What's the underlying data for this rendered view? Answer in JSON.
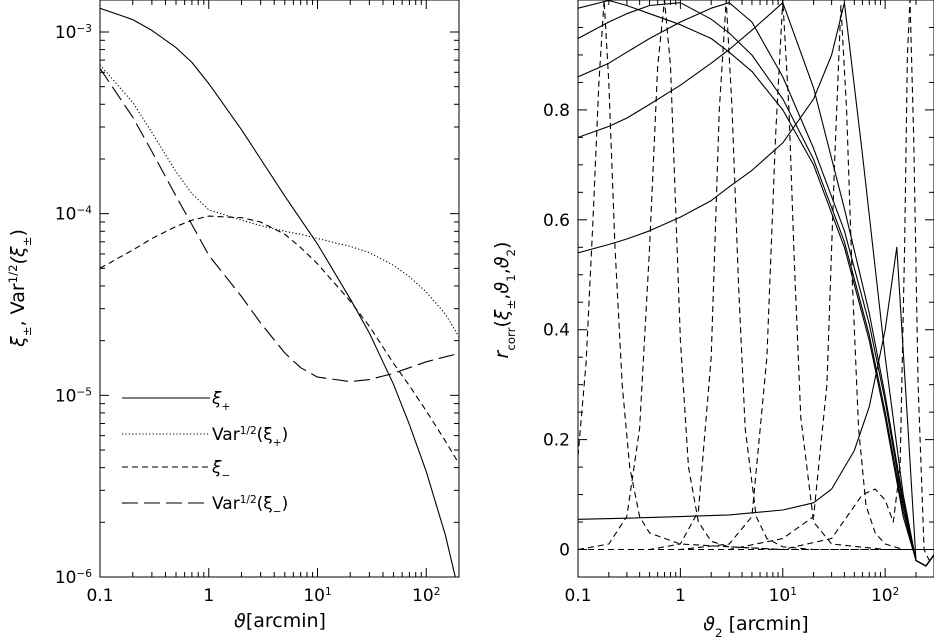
{
  "chart_data": [
    {
      "type": "line",
      "xscale": "log",
      "yscale": "log",
      "xlim": [
        0.1,
        200
      ],
      "ylim": [
        1e-06,
        0.0015
      ],
      "xlabel": "ϑ[arcmin]",
      "ylabel": "ξ±,  Var^1/2(ξ±)",
      "xticks": [
        {
          "value": 0.1,
          "label": "0.1",
          "sup": ""
        },
        {
          "value": 1,
          "label": "1",
          "sup": ""
        },
        {
          "value": 10,
          "label": "10",
          "sup": "1"
        },
        {
          "value": 100,
          "label": "10",
          "sup": "2"
        }
      ],
      "yticks": [
        {
          "value": 1e-06,
          "label": "10",
          "sup": "−6"
        },
        {
          "value": 1e-05,
          "label": "10",
          "sup": "−5"
        },
        {
          "value": 0.0001,
          "label": "10",
          "sup": "−4"
        },
        {
          "value": 0.001,
          "label": "10",
          "sup": "−3"
        }
      ],
      "legend_position": "lower-left",
      "series": [
        {
          "name": "ξ+",
          "style": "solid",
          "x": [
            0.1,
            0.2,
            0.3,
            0.5,
            0.7,
            1,
            2,
            3,
            5,
            7,
            10,
            20,
            30,
            50,
            70,
            100,
            150,
            200
          ],
          "y": [
            0.00135,
            0.00117,
            0.00102,
            0.00082,
            0.00068,
            0.00052,
            0.00029,
            0.0002,
            0.000125,
            9.3e-05,
            6.8e-05,
            3.4e-05,
            2.2e-05,
            1.15e-05,
            6.9e-06,
            3.8e-06,
            1.7e-06,
            8.2e-07
          ]
        },
        {
          "name": "Var1/2(ξ+)",
          "style": "dotted",
          "x": [
            0.1,
            0.2,
            0.3,
            0.5,
            0.7,
            1,
            2,
            3,
            5,
            7,
            10,
            20,
            30,
            50,
            70,
            100,
            150,
            200
          ],
          "y": [
            0.00066,
            0.00041,
            0.00028,
            0.00017,
            0.000129,
            0.000105,
            9.2e-05,
            8.6e-05,
            8e-05,
            7.7e-05,
            7.3e-05,
            6.6e-05,
            6.1e-05,
            5.2e-05,
            4.5e-05,
            3.7e-05,
            2.8e-05,
            2.1e-05
          ]
        },
        {
          "name": "ξ−",
          "style": "dashed",
          "x": [
            0.1,
            0.2,
            0.3,
            0.5,
            0.7,
            1,
            2,
            3,
            5,
            7,
            10,
            20,
            30,
            50,
            70,
            100,
            150,
            200
          ],
          "y": [
            5e-05,
            6.3e-05,
            7.3e-05,
            8.5e-05,
            9.2e-05,
            9.7e-05,
            9.5e-05,
            9e-05,
            7.7e-05,
            6.5e-05,
            5.3e-05,
            3.3e-05,
            2.4e-05,
            1.5e-05,
            1.13e-05,
            8.2e-06,
            5.6e-06,
            4.2e-06
          ]
        },
        {
          "name": "Var1/2(ξ−)",
          "style": "longdash",
          "x": [
            0.1,
            0.2,
            0.3,
            0.5,
            0.7,
            1,
            2,
            3,
            5,
            7,
            10,
            20,
            30,
            50,
            70,
            100,
            150,
            200
          ],
          "y": [
            0.00063,
            0.00034,
            0.00022,
            0.000125,
            8.7e-05,
            5.9e-05,
            3.5e-05,
            2.5e-05,
            1.71e-05,
            1.42e-05,
            1.26e-05,
            1.19e-05,
            1.22e-05,
            1.32e-05,
            1.42e-05,
            1.53e-05,
            1.63e-05,
            1.7e-05
          ]
        }
      ],
      "legend_labels": [
        {
          "label": "ξ",
          "sub": "+"
        },
        {
          "label": "Var",
          "sup": "1/2",
          "rest": "(ξ",
          "sub": "+",
          "end": ")"
        },
        {
          "label": "ξ",
          "sub": "−"
        },
        {
          "label": "Var",
          "sup": "1/2",
          "rest": "(ξ",
          "sub": "−",
          "end": ")"
        }
      ]
    },
    {
      "type": "line",
      "xscale": "log",
      "xlim": [
        0.1,
        300
      ],
      "ylim": [
        -0.05,
        1.0
      ],
      "xlabel": "ϑ₂ [arcmin]",
      "ylabel": "r_corr(ξ±,ϑ₁,ϑ₂)",
      "xticks": [
        {
          "value": 0.1,
          "label": "0.1",
          "sup": ""
        },
        {
          "value": 1,
          "label": "1",
          "sup": ""
        },
        {
          "value": 10,
          "label": "10",
          "sup": "1"
        },
        {
          "value": 100,
          "label": "10",
          "sup": "2"
        }
      ],
      "yticks": [
        {
          "value": 0,
          "label": "0"
        },
        {
          "value": 0.2,
          "label": "0.2"
        },
        {
          "value": 0.4,
          "label": "0.4"
        },
        {
          "value": 0.6,
          "label": "0.6"
        },
        {
          "value": 0.8,
          "label": "0.8"
        }
      ],
      "series": [
        {
          "style": "solid",
          "x": [
            0.1,
            0.2,
            0.3,
            0.5,
            1,
            2,
            3,
            5,
            10,
            20,
            40,
            70,
            100,
            150,
            200,
            250,
            300
          ],
          "y": [
            0.985,
            0.999,
            0.99,
            0.975,
            0.955,
            0.93,
            0.905,
            0.87,
            0.8,
            0.7,
            0.55,
            0.38,
            0.24,
            0.06,
            -0.02,
            -0.03,
            -0.01
          ]
        },
        {
          "style": "solid",
          "x": [
            0.1,
            0.2,
            0.3,
            0.5,
            1,
            2,
            3,
            5,
            10,
            20,
            40,
            70,
            100,
            150,
            200,
            250,
            300
          ],
          "y": [
            0.93,
            0.96,
            0.975,
            0.99,
            0.995,
            0.965,
            0.94,
            0.9,
            0.82,
            0.71,
            0.56,
            0.39,
            0.25,
            0.07,
            -0.02,
            -0.03,
            -0.01
          ]
        },
        {
          "style": "solid",
          "x": [
            0.1,
            0.2,
            0.3,
            0.5,
            1,
            2,
            3,
            5,
            10,
            20,
            40,
            70,
            100,
            150,
            200,
            250,
            300
          ],
          "y": [
            0.86,
            0.885,
            0.905,
            0.93,
            0.96,
            0.985,
            0.995,
            0.96,
            0.86,
            0.73,
            0.58,
            0.41,
            0.27,
            0.08,
            -0.02,
            -0.03,
            -0.01
          ]
        },
        {
          "style": "solid",
          "x": [
            0.1,
            0.2,
            0.3,
            0.5,
            1,
            2,
            3,
            5,
            10,
            20,
            40,
            70,
            100,
            150,
            200,
            250,
            300
          ],
          "y": [
            0.75,
            0.77,
            0.785,
            0.81,
            0.845,
            0.885,
            0.91,
            0.945,
            0.995,
            0.84,
            0.62,
            0.43,
            0.28,
            0.09,
            -0.02,
            -0.03,
            -0.01
          ]
        },
        {
          "style": "solid",
          "x": [
            0.1,
            0.2,
            0.3,
            0.5,
            1,
            2,
            3,
            5,
            10,
            20,
            30,
            40,
            60,
            100,
            150,
            200,
            250,
            300
          ],
          "y": [
            0.54,
            0.555,
            0.565,
            0.58,
            0.605,
            0.635,
            0.66,
            0.69,
            0.74,
            0.82,
            0.9,
            0.995,
            0.72,
            0.35,
            0.1,
            -0.02,
            -0.03,
            -0.01
          ]
        },
        {
          "style": "solid",
          "x": [
            0.1,
            0.3,
            1,
            3,
            10,
            20,
            30,
            50,
            70,
            100,
            130,
            170,
            200,
            250,
            300
          ],
          "y": [
            0.055,
            0.057,
            0.06,
            0.063,
            0.072,
            0.085,
            0.11,
            0.18,
            0.26,
            0.4,
            0.55,
            0.2,
            -0.02,
            -0.03,
            -0.01
          ]
        },
        {
          "style": "dashed",
          "x": [
            0.1,
            0.12,
            0.14,
            0.16,
            0.18,
            0.2,
            0.23,
            0.27,
            0.32,
            0.4,
            0.5,
            1,
            3,
            10,
            100,
            300
          ],
          "y": [
            0.17,
            0.34,
            0.6,
            0.85,
            1.0,
            0.85,
            0.55,
            0.3,
            0.15,
            0.06,
            0.03,
            0.01,
            0.005,
            0.0,
            0.0,
            0.0
          ]
        },
        {
          "style": "dashed",
          "x": [
            0.1,
            0.2,
            0.3,
            0.4,
            0.5,
            0.6,
            0.7,
            0.8,
            0.9,
            1.0,
            1.2,
            1.5,
            2,
            3,
            10,
            100,
            300
          ],
          "y": [
            0.0,
            0.01,
            0.06,
            0.22,
            0.55,
            0.88,
            1.0,
            0.88,
            0.62,
            0.38,
            0.15,
            0.05,
            0.015,
            0.005,
            0.0,
            0.0,
            0.0
          ]
        },
        {
          "style": "dashed",
          "x": [
            0.1,
            0.5,
            1,
            1.5,
            2,
            2.4,
            2.8,
            3.2,
            3.7,
            4.3,
            5.5,
            7,
            10,
            20,
            100,
            300
          ],
          "y": [
            0.0,
            0.0,
            0.01,
            0.07,
            0.35,
            0.8,
            1.0,
            0.8,
            0.48,
            0.22,
            0.06,
            0.02,
            0.005,
            0.0,
            0.0,
            0.0
          ]
        },
        {
          "style": "dashed",
          "x": [
            0.1,
            1,
            3,
            5,
            7,
            8.5,
            10,
            11.5,
            13,
            15,
            20,
            30,
            100,
            300
          ],
          "y": [
            0.0,
            0.0,
            0.01,
            0.06,
            0.35,
            0.75,
            1.0,
            0.8,
            0.52,
            0.24,
            0.05,
            0.01,
            0.0,
            0.0
          ]
        },
        {
          "style": "dashed",
          "x": [
            0.1,
            3,
            10,
            20,
            27,
            32,
            37,
            42,
            48,
            55,
            65,
            80,
            100,
            150,
            300
          ],
          "y": [
            0.0,
            0.0,
            0.02,
            0.06,
            0.3,
            0.7,
            0.99,
            0.8,
            0.48,
            0.22,
            0.08,
            0.03,
            0.01,
            0.0,
            0.0
          ]
        },
        {
          "style": "dashed",
          "x": [
            0.1,
            10,
            30,
            60,
            80,
            100,
            120,
            140,
            155,
            165,
            175,
            190,
            210,
            240,
            270,
            300
          ],
          "y": [
            0.0,
            0.0,
            0.02,
            0.1,
            0.11,
            0.09,
            0.05,
            0.15,
            0.55,
            0.9,
            1.0,
            0.75,
            0.3,
            0.0,
            -0.02,
            -0.01
          ]
        }
      ]
    }
  ]
}
